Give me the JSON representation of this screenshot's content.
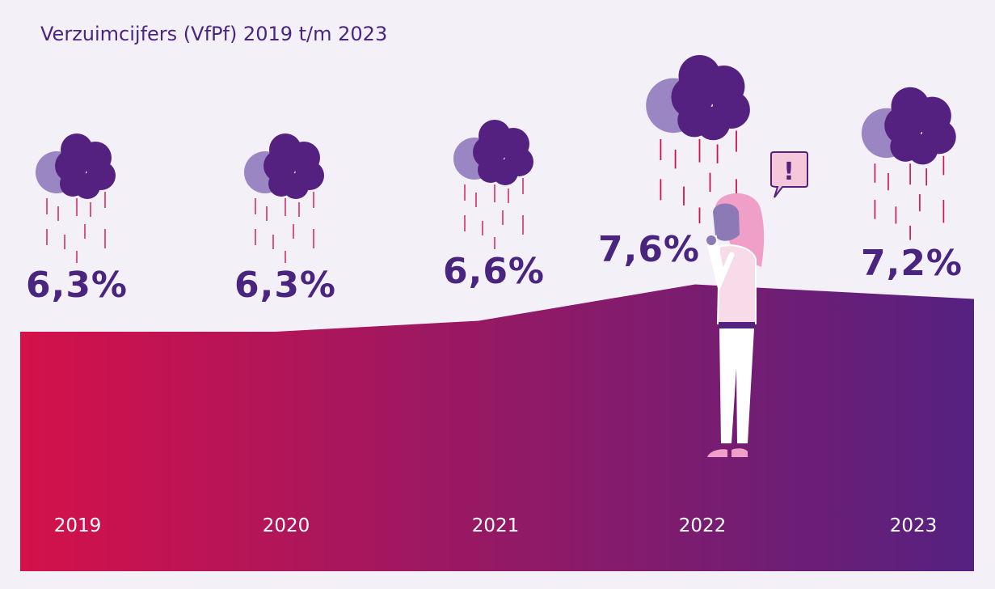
{
  "chart_data": {
    "type": "area",
    "title": "Verzuimcijfers (VfPf) 2019 t/m 2023",
    "categories": [
      "2019",
      "2020",
      "2021",
      "2022",
      "2023"
    ],
    "values": [
      6.3,
      6.3,
      6.6,
      7.6,
      7.2
    ],
    "value_labels": [
      "6,3%",
      "6,3%",
      "6,6%",
      "7,6%",
      "7,2%"
    ],
    "xlabel": "",
    "ylabel": "",
    "grid": false,
    "legend": "none"
  },
  "colors": {
    "background": "#f4f0f8",
    "gradient_start": "#d4114a",
    "gradient_end": "#552180",
    "text": "#4a2580",
    "cloud_dark": "#552180",
    "cloud_light": "#9b86c4",
    "rain": "#cc1450",
    "figure_hair": "#ef9fc8",
    "figure_skin": "#8c7ab6",
    "figure_shirt": "#f7dbe8",
    "speech_bubble": "#f6c7d9"
  },
  "illustration": {
    "speech_bubble_text": "!",
    "icons": [
      "rain-cloud-icon",
      "thinking-woman-illustration",
      "speech-bubble-exclamation-icon"
    ]
  }
}
